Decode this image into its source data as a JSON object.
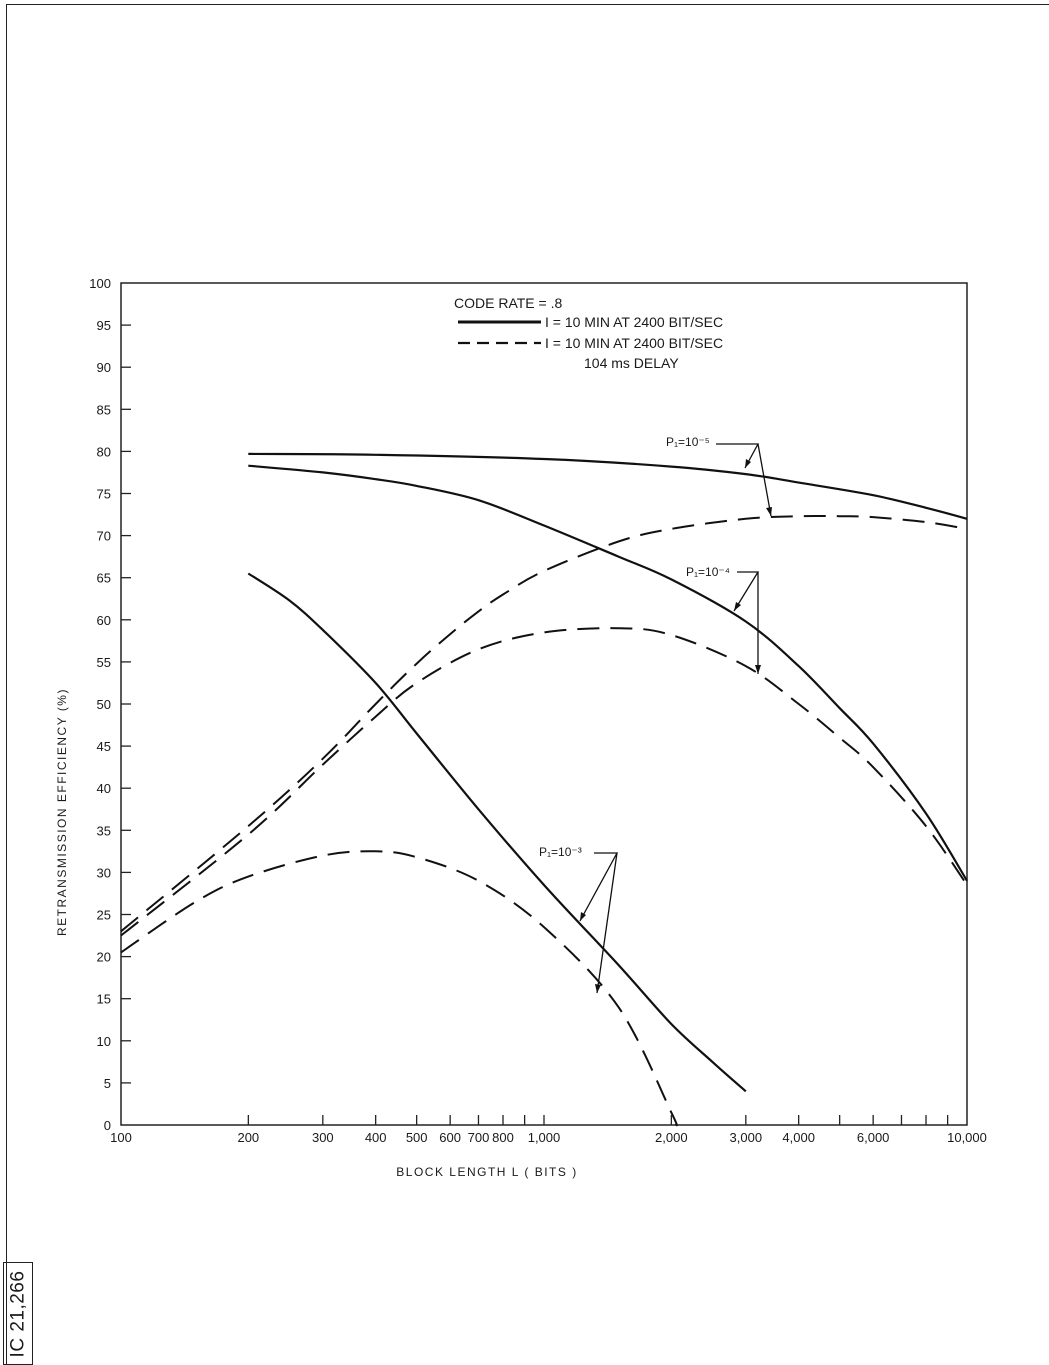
{
  "figure_id": "IC 21,266",
  "chart_data": {
    "type": "line",
    "xlabel": "BLOCK LENGTH L ( BITS )",
    "ylabel": "RETRANSMISSION EFFICIENCY (%)",
    "x_scale": "log",
    "xlim": [
      100,
      10000
    ],
    "ylim": [
      0,
      100
    ],
    "x_ticks": [
      100,
      200,
      300,
      400,
      500,
      600,
      700,
      800,
      900,
      1000,
      2000,
      3000,
      4000,
      5000,
      6000,
      7000,
      8000,
      9000,
      10000
    ],
    "x_tick_labels": [
      {
        "x": 100,
        "label": "100"
      },
      {
        "x": 200,
        "label": "200"
      },
      {
        "x": 300,
        "label": "300"
      },
      {
        "x": 400,
        "label": "400"
      },
      {
        "x": 500,
        "label": "500"
      },
      {
        "x": 600,
        "label": "600"
      },
      {
        "x": 700,
        "label": "700"
      },
      {
        "x": 800,
        "label": "800"
      },
      {
        "x": 1000,
        "label": "1,000"
      },
      {
        "x": 2000,
        "label": "2,000"
      },
      {
        "x": 3000,
        "label": "3,000"
      },
      {
        "x": 4000,
        "label": "4,000"
      },
      {
        "x": 6000,
        "label": "6,000"
      },
      {
        "x": 10000,
        "label": "10,000"
      }
    ],
    "y_ticks": [
      0,
      5,
      10,
      15,
      20,
      25,
      30,
      35,
      40,
      45,
      50,
      55,
      60,
      65,
      70,
      75,
      80,
      85,
      90,
      95,
      100
    ],
    "legend": {
      "title": "CODE RATE = .8",
      "entries": [
        {
          "style": "solid",
          "label": "I = 10 MIN AT 2400 BIT/SEC"
        },
        {
          "style": "dashed",
          "label": "I = 10 MIN AT 2400 BIT/SEC"
        }
      ],
      "note": "104 ms  DELAY"
    },
    "annotations": [
      {
        "label": "P₁=10⁻⁵"
      },
      {
        "label": "P₁=10⁻⁴"
      },
      {
        "label": "P₁=10⁻³"
      }
    ],
    "series": [
      {
        "style": "solid",
        "group": 0,
        "points": [
          [
            200,
            79.7
          ],
          [
            400,
            79.6
          ],
          [
            1000,
            79.1
          ],
          [
            2000,
            78.2
          ],
          [
            3000,
            77.3
          ],
          [
            4000,
            76.3
          ],
          [
            6000,
            74.8
          ],
          [
            8000,
            73.3
          ],
          [
            10000,
            72.0
          ]
        ]
      },
      {
        "style": "dashed",
        "group": 0,
        "points": [
          [
            100,
            23.0
          ],
          [
            200,
            35.5
          ],
          [
            300,
            43.5
          ],
          [
            400,
            50.0
          ],
          [
            500,
            54.8
          ],
          [
            600,
            58.3
          ],
          [
            700,
            61.0
          ],
          [
            800,
            63.0
          ],
          [
            1000,
            65.8
          ],
          [
            1500,
            69.3
          ],
          [
            2000,
            70.8
          ],
          [
            3000,
            72.0
          ],
          [
            4000,
            72.3
          ],
          [
            5000,
            72.3
          ],
          [
            6000,
            72.2
          ],
          [
            8000,
            71.6
          ],
          [
            10000,
            70.8
          ]
        ]
      },
      {
        "style": "solid",
        "group": 1,
        "points": [
          [
            200,
            78.3
          ],
          [
            300,
            77.5
          ],
          [
            400,
            76.7
          ],
          [
            500,
            75.9
          ],
          [
            700,
            74.2
          ],
          [
            1000,
            71.2
          ],
          [
            1500,
            67.5
          ],
          [
            2000,
            64.8
          ],
          [
            3000,
            59.8
          ],
          [
            4000,
            54.5
          ],
          [
            5000,
            49.5
          ],
          [
            6000,
            45.3
          ],
          [
            8000,
            37.0
          ],
          [
            10000,
            29.0
          ]
        ]
      },
      {
        "style": "dashed",
        "group": 1,
        "points": [
          [
            100,
            22.5
          ],
          [
            200,
            34.5
          ],
          [
            300,
            42.8
          ],
          [
            400,
            48.5
          ],
          [
            500,
            52.5
          ],
          [
            700,
            56.5
          ],
          [
            1000,
            58.5
          ],
          [
            1500,
            59.0
          ],
          [
            2000,
            58.2
          ],
          [
            3000,
            54.5
          ],
          [
            4000,
            50.0
          ],
          [
            5000,
            46.0
          ],
          [
            6000,
            42.5
          ],
          [
            8000,
            35.5
          ],
          [
            10000,
            28.5
          ]
        ]
      },
      {
        "style": "solid",
        "group": 2,
        "points": [
          [
            200,
            65.5
          ],
          [
            250,
            62.3
          ],
          [
            300,
            58.8
          ],
          [
            400,
            52.5
          ],
          [
            500,
            46.5
          ],
          [
            700,
            37.5
          ],
          [
            1000,
            28.5
          ],
          [
            1500,
            19.0
          ],
          [
            2000,
            12.0
          ],
          [
            2500,
            7.5
          ],
          [
            3000,
            4.0
          ]
        ]
      },
      {
        "style": "dashed",
        "group": 2,
        "points": [
          [
            100,
            20.5
          ],
          [
            150,
            26.5
          ],
          [
            200,
            29.5
          ],
          [
            300,
            32.0
          ],
          [
            400,
            32.5
          ],
          [
            500,
            31.8
          ],
          [
            700,
            29.0
          ],
          [
            1000,
            23.5
          ],
          [
            1500,
            14.0
          ],
          [
            2000,
            1.5
          ],
          [
            2050,
            0.0
          ]
        ]
      }
    ]
  }
}
